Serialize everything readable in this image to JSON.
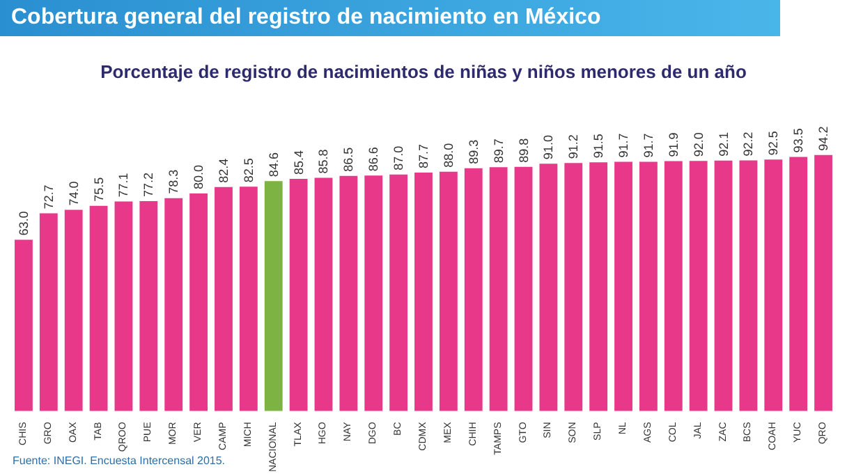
{
  "chart_data": {
    "type": "bar",
    "title": "Cobertura general del registro de nacimiento en México",
    "subtitle": "Porcentaje de registro de nacimientos de niñas y niños menores de un año",
    "categories": [
      "CHIS",
      "GRO",
      "OAX",
      "TAB",
      "QROO",
      "PUE",
      "MOR",
      "VER",
      "CAMP",
      "MICH",
      "NACIONAL",
      "TLAX",
      "HGO",
      "NAY",
      "DGO",
      "BC",
      "CDMX",
      "MEX",
      "CHIH",
      "TAMPS",
      "GTO",
      "SIN",
      "SON",
      "SLP",
      "NL",
      "AGS",
      "COL",
      "JAL",
      "ZAC",
      "BCS",
      "COAH",
      "YUC",
      "QRO"
    ],
    "values": [
      63.0,
      72.7,
      74.0,
      75.5,
      77.1,
      77.2,
      78.3,
      80.0,
      82.4,
      82.5,
      84.6,
      85.4,
      85.8,
      86.5,
      86.6,
      87.0,
      87.7,
      88.0,
      89.3,
      89.7,
      89.8,
      91.0,
      91.2,
      91.5,
      91.7,
      91.7,
      91.9,
      92.0,
      92.1,
      92.2,
      92.5,
      93.5,
      94.2
    ],
    "value_labels": [
      "63.0",
      "72.7",
      "74.0",
      "75.5",
      "77.1",
      "77.2",
      "78.3",
      "80.0",
      "82.4",
      "82.5",
      "84.6",
      "85.4",
      "85.8",
      "86.5",
      "86.6",
      "87.0",
      "87.7",
      "88.0",
      "89.3",
      "89.7",
      "89.8",
      "91.0",
      "91.2",
      "91.5",
      "91.7",
      "91.7",
      "91.9",
      "92.0",
      "92.1",
      "92.2",
      "92.5",
      "93.5",
      "94.2"
    ],
    "colors": [
      "#e8388a",
      "#e8388a",
      "#e8388a",
      "#e8388a",
      "#e8388a",
      "#e8388a",
      "#e8388a",
      "#e8388a",
      "#e8388a",
      "#e8388a",
      "#7cb342",
      "#e8388a",
      "#e8388a",
      "#e8388a",
      "#e8388a",
      "#e8388a",
      "#e8388a",
      "#e8388a",
      "#e8388a",
      "#e8388a",
      "#e8388a",
      "#e8388a",
      "#e8388a",
      "#e8388a",
      "#e8388a",
      "#e8388a",
      "#e8388a",
      "#e8388a",
      "#e8388a",
      "#e8388a",
      "#e8388a",
      "#e8388a",
      "#e8388a"
    ],
    "tick_labels": "x",
    "annotations": [
      "Fuente: INEGI. Encuesta Intercensal 2015."
    ]
  }
}
